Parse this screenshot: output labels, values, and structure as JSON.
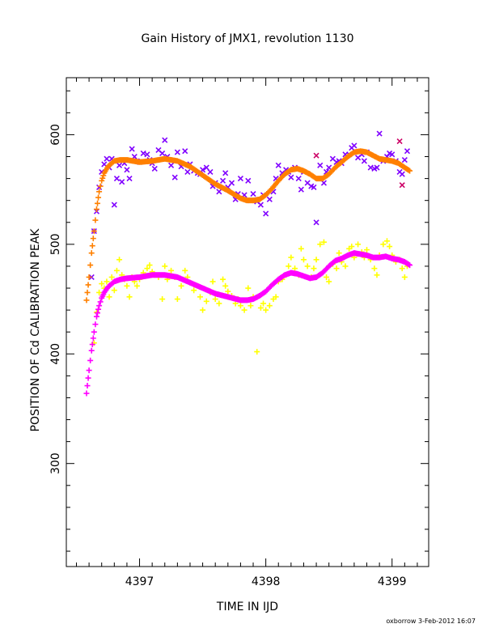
{
  "chart_data": {
    "type": "scatter",
    "title": "Gain History of JMX1, revolution 1130",
    "xlabel": "TIME IN IJD",
    "ylabel": "POSITION OF Cd CALIBRATION PEAK",
    "footer": "oxborrow  3-Feb-2012 16:07",
    "xlim": [
      4396.42,
      4399.29
    ],
    "ylim": [
      206,
      652
    ],
    "x_ticks": [
      4397,
      4398,
      4399
    ],
    "x_tick_labels": [
      "4397",
      "4398",
      "4399"
    ],
    "y_ticks": [
      300,
      400,
      500,
      600
    ],
    "y_tick_labels": [
      "300",
      "400",
      "500",
      "600"
    ],
    "grid": false,
    "colors": {
      "upper_points": "#8000ff",
      "upper_fit": "#ff8000",
      "lower_points": "#ffff00",
      "lower_fit": "#ff00ff",
      "outlier_upper": "#cc0066"
    },
    "series": [
      {
        "marker": "x",
        "color": "#8000ff",
        "x": [
          4396.62,
          4396.64,
          4396.66,
          4396.68,
          4396.7,
          4396.72,
          4396.74,
          4396.76,
          4396.78,
          4396.8,
          4396.82,
          4396.84,
          4396.86,
          4396.88,
          4396.9,
          4396.92,
          4396.94,
          4396.96,
          4396.98,
          4397.0,
          4397.03,
          4397.06,
          4397.08,
          4397.1,
          4397.12,
          4397.15,
          4397.18,
          4397.2,
          4397.22,
          4397.25,
          4397.28,
          4397.3,
          4397.33,
          4397.36,
          4397.38,
          4397.4,
          4397.43,
          4397.46,
          4397.48,
          4397.5,
          4397.53,
          4397.56,
          4397.58,
          4397.6,
          4397.63,
          4397.66,
          4397.68,
          4397.7,
          4397.73,
          4397.76,
          4397.78,
          4397.8,
          4397.83,
          4397.86,
          4397.88,
          4397.9,
          4397.93,
          4397.96,
          4397.98,
          4398.0,
          4398.03,
          4398.06,
          4398.08,
          4398.1,
          4398.13,
          4398.16,
          4398.18,
          4398.2,
          4398.23,
          4398.26,
          4398.28,
          4398.3,
          4398.33,
          4398.36,
          4398.38,
          4398.4,
          4398.43,
          4398.46,
          4398.48,
          4398.5,
          4398.53,
          4398.56,
          4398.58,
          4398.6,
          4398.63,
          4398.66,
          4398.68,
          4398.7,
          4398.73,
          4398.76,
          4398.78,
          4398.8,
          4398.83,
          4398.86,
          4398.88,
          4398.9,
          4398.93,
          4398.96,
          4398.98,
          4399.0,
          4399.03,
          4399.06,
          4399.08,
          4399.1,
          4399.12
        ],
        "y": [
          470,
          512,
          530,
          552,
          566,
          573,
          578,
          570,
          578,
          536,
          560,
          572,
          557,
          574,
          568,
          560,
          587,
          580,
          576,
          575,
          583,
          582,
          577,
          574,
          569,
          586,
          583,
          595,
          580,
          572,
          561,
          584,
          571,
          585,
          566,
          573,
          567,
          565,
          564,
          568,
          570,
          566,
          553,
          556,
          548,
          558,
          565,
          552,
          556,
          541,
          546,
          560,
          545,
          558,
          540,
          546,
          539,
          536,
          545,
          528,
          541,
          548,
          560,
          572,
          565,
          568,
          566,
          561,
          570,
          560,
          550,
          566,
          556,
          553,
          552,
          520,
          572,
          556,
          566,
          570,
          578,
          575,
          576,
          574,
          582,
          582,
          588,
          590,
          579,
          582,
          576,
          584,
          570,
          569,
          570,
          601,
          576,
          580,
          583,
          582,
          576,
          566,
          564,
          577,
          585
        ]
      },
      {
        "marker": "plus",
        "color": "#ffff00",
        "x": [
          4396.64,
          4396.66,
          4396.68,
          4396.7,
          4396.72,
          4396.74,
          4396.76,
          4396.78,
          4396.8,
          4396.82,
          4396.84,
          4396.86,
          4396.88,
          4396.9,
          4396.92,
          4396.94,
          4396.96,
          4396.98,
          4397.0,
          4397.03,
          4397.06,
          4397.08,
          4397.1,
          4397.12,
          4397.15,
          4397.18,
          4397.2,
          4397.22,
          4397.25,
          4397.28,
          4397.3,
          4397.33,
          4397.36,
          4397.38,
          4397.4,
          4397.43,
          4397.46,
          4397.48,
          4397.5,
          4397.53,
          4397.56,
          4397.58,
          4397.6,
          4397.63,
          4397.66,
          4397.68,
          4397.7,
          4397.73,
          4397.76,
          4397.78,
          4397.8,
          4397.83,
          4397.86,
          4397.88,
          4397.9,
          4397.93,
          4397.96,
          4397.98,
          4398.0,
          4398.03,
          4398.06,
          4398.08,
          4398.1,
          4398.13,
          4398.16,
          4398.18,
          4398.2,
          4398.23,
          4398.26,
          4398.28,
          4398.3,
          4398.33,
          4398.36,
          4398.38,
          4398.4,
          4398.43,
          4398.46,
          4398.48,
          4398.5,
          4398.53,
          4398.56,
          4398.58,
          4398.6,
          4398.63,
          4398.66,
          4398.68,
          4398.7,
          4398.73,
          4398.76,
          4398.78,
          4398.8,
          4398.83,
          4398.86,
          4398.88,
          4398.9,
          4398.93,
          4398.96,
          4398.98,
          4399.0,
          4399.03,
          4399.06,
          4399.08,
          4399.1,
          4399.12
        ],
        "y": [
          410,
          438,
          456,
          464,
          460,
          466,
          452,
          470,
          458,
          476,
          486,
          472,
          468,
          462,
          452,
          470,
          466,
          462,
          468,
          474,
          478,
          481,
          475,
          472,
          470,
          450,
          480,
          468,
          476,
          470,
          450,
          462,
          476,
          470,
          465,
          458,
          462,
          452,
          440,
          448,
          456,
          466,
          450,
          446,
          468,
          462,
          457,
          453,
          446,
          450,
          444,
          440,
          460,
          444,
          452,
          402,
          442,
          446,
          440,
          444,
          450,
          452,
          466,
          468,
          472,
          480,
          488,
          478,
          472,
          496,
          486,
          480,
          470,
          478,
          486,
          500,
          502,
          470,
          466,
          482,
          478,
          492,
          484,
          480,
          496,
          498,
          488,
          500,
          493,
          488,
          495,
          486,
          478,
          472,
          490,
          500,
          503,
          498,
          490,
          484,
          486,
          478,
          470,
          480
        ]
      },
      {
        "marker": "plus",
        "color": "#ff8000",
        "name": "",
        "x": [
          4396.58,
          4396.6,
          4396.62,
          4396.64,
          4396.66,
          4396.68,
          4396.7,
          4396.72,
          4396.75,
          4396.8,
          4396.85,
          4396.9,
          4397.0,
          4397.1,
          4397.2,
          4397.3,
          4397.4,
          4397.5,
          4397.6,
          4397.7,
          4397.8,
          4397.85,
          4397.9,
          4397.95,
          4398.0,
          4398.05,
          4398.1,
          4398.15,
          4398.2,
          4398.25,
          4398.3,
          4398.35,
          4398.4,
          4398.45,
          4398.5,
          4398.55,
          4398.6,
          4398.65,
          4398.7,
          4398.75,
          4398.8,
          4398.85,
          4398.9,
          4398.95,
          4399.0,
          4399.05,
          4399.1,
          4399.14
        ],
        "y": [
          449,
          470,
          492,
          512,
          532,
          548,
          558,
          565,
          571,
          576,
          577,
          577,
          575,
          576,
          578,
          576,
          571,
          563,
          555,
          549,
          542,
          540,
          540,
          541,
          545,
          551,
          558,
          564,
          568,
          569,
          567,
          564,
          560,
          560,
          564,
          570,
          575,
          580,
          584,
          585,
          584,
          581,
          578,
          577,
          576,
          574,
          570,
          567
        ]
      },
      {
        "marker": "plus",
        "color": "#ff00ff",
        "name": "",
        "x": [
          4396.58,
          4396.6,
          4396.62,
          4396.64,
          4396.66,
          4396.68,
          4396.7,
          4396.72,
          4396.75,
          4396.8,
          4396.85,
          4396.9,
          4397.0,
          4397.1,
          4397.2,
          4397.3,
          4397.4,
          4397.5,
          4397.6,
          4397.7,
          4397.8,
          4397.85,
          4397.9,
          4397.95,
          4398.0,
          4398.05,
          4398.1,
          4398.15,
          4398.2,
          4398.25,
          4398.3,
          4398.35,
          4398.4,
          4398.45,
          4398.5,
          4398.55,
          4398.6,
          4398.65,
          4398.7,
          4398.75,
          4398.8,
          4398.85,
          4398.9,
          4398.95,
          4399.0,
          4399.05,
          4399.1,
          4399.14
        ],
        "y": [
          364,
          385,
          403,
          420,
          434,
          444,
          451,
          456,
          461,
          466,
          468,
          469,
          470,
          472,
          472,
          470,
          465,
          460,
          455,
          452,
          449,
          449,
          450,
          453,
          457,
          463,
          468,
          472,
          474,
          473,
          471,
          469,
          470,
          474,
          480,
          485,
          487,
          490,
          492,
          491,
          490,
          488,
          488,
          489,
          487,
          486,
          484,
          481
        ]
      }
    ],
    "outliers": [
      {
        "color": "#cc0066",
        "x": 4398.4,
        "y": 581
      },
      {
        "color": "#cc0066",
        "x": 4399.06,
        "y": 594
      },
      {
        "color": "#cc0066",
        "x": 4399.08,
        "y": 554
      }
    ]
  }
}
